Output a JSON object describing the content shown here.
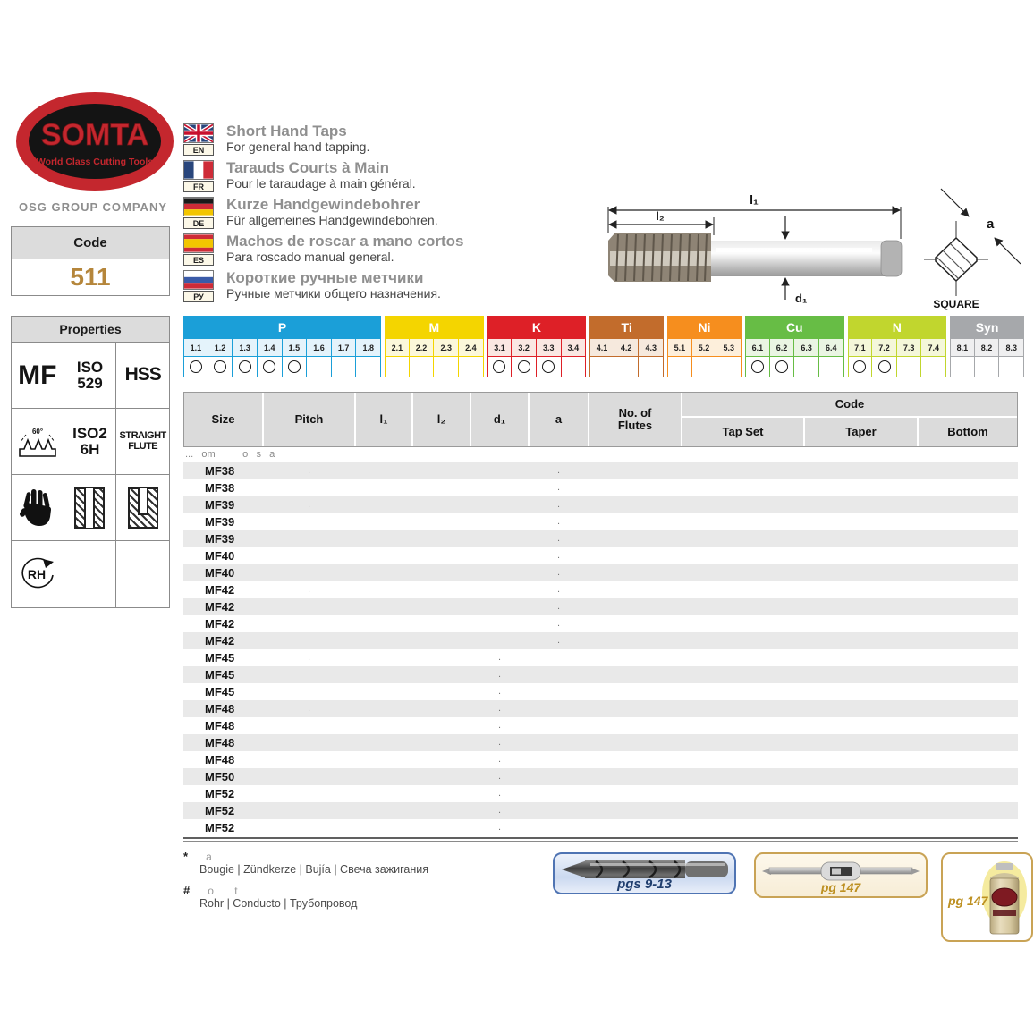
{
  "brand": {
    "logo_text": "SOMTA",
    "logo_tagline": "World Class Cutting Tools",
    "company_line": "OSG GROUP COMPANY",
    "brand_red": "#C4272E"
  },
  "code_box": {
    "label": "Code",
    "value": "511",
    "value_color": "#B5863B"
  },
  "properties": {
    "title": "Properties",
    "cells": [
      {
        "kind": "text",
        "name": "thread-type-mf",
        "value": "MF",
        "size": "xl"
      },
      {
        "kind": "text",
        "name": "iso-529-standard",
        "value": "ISO\n529",
        "size": "lg"
      },
      {
        "kind": "text",
        "name": "material-hss",
        "value": "HSS",
        "size": "lg2"
      },
      {
        "kind": "icon",
        "name": "thread-profile-icon",
        "value": "60°"
      },
      {
        "kind": "text",
        "name": "tolerance-iso2-6h",
        "value": "ISO2\n6H",
        "size": "lg"
      },
      {
        "kind": "text",
        "name": "straight-flute",
        "value": "STRAIGHT\nFLUTE",
        "size": "sm"
      },
      {
        "kind": "icon",
        "name": "hand-icon",
        "value": ""
      },
      {
        "kind": "icon",
        "name": "through-hole-icon",
        "value": ""
      },
      {
        "kind": "icon",
        "name": "blind-hole-icon",
        "value": ""
      },
      {
        "kind": "icon",
        "name": "rh-rotation-icon",
        "value": "RH"
      },
      {
        "kind": "empty",
        "name": "empty-cell",
        "value": ""
      },
      {
        "kind": "empty",
        "name": "empty-cell",
        "value": ""
      }
    ]
  },
  "languages": [
    {
      "code": "EN",
      "flag": "uk",
      "title": "Short Hand Taps",
      "subtitle": "For general hand tapping."
    },
    {
      "code": "FR",
      "flag": "france",
      "title": "Tarauds Courts à Main",
      "subtitle": "Pour le taraudage à main général."
    },
    {
      "code": "DE",
      "flag": "germany",
      "title": "Kurze Handgewindebohrer",
      "subtitle": "Für allgemeines Handgewindebohren."
    },
    {
      "code": "ES",
      "flag": "spain",
      "title": "Machos de roscar a mano cortos",
      "subtitle": "Para roscado manual general."
    },
    {
      "code": "РУ",
      "flag": "russia",
      "title": "Короткие ручные метчики",
      "subtitle": "Ручные метчики общего назначения."
    }
  ],
  "diagram": {
    "l1": "l₁",
    "l2": "l₂",
    "d1": "d₁",
    "a": "a",
    "square_label": "SQUARE"
  },
  "materials": {
    "groups": [
      {
        "name": "P",
        "color": "#1B9FD8",
        "tint": "#E4F3FB",
        "columns": [
          "1.1",
          "1.2",
          "1.3",
          "1.4",
          "1.5",
          "1.6",
          "1.7",
          "1.8"
        ],
        "checked": [
          "1.1",
          "1.2",
          "1.3",
          "1.4",
          "1.5"
        ]
      },
      {
        "name": "M",
        "color": "#F4D500",
        "tint": "#FCF8DA",
        "columns": [
          "2.1",
          "2.2",
          "2.3",
          "2.4"
        ],
        "checked": []
      },
      {
        "name": "K",
        "color": "#DE2027",
        "tint": "#FAE7E2",
        "columns": [
          "3.1",
          "3.2",
          "3.3",
          "3.4"
        ],
        "checked": [
          "3.1",
          "3.2",
          "3.3"
        ]
      },
      {
        "name": "Ti",
        "color": "#C26C2C",
        "tint": "#F6E9DD",
        "columns": [
          "4.1",
          "4.2",
          "4.3"
        ],
        "checked": []
      },
      {
        "name": "Ni",
        "color": "#F68E1E",
        "tint": "#FDEFDB",
        "columns": [
          "5.1",
          "5.2",
          "5.3"
        ],
        "checked": []
      },
      {
        "name": "Cu",
        "color": "#67BD45",
        "tint": "#EAF5E3",
        "columns": [
          "6.1",
          "6.2",
          "6.3",
          "6.4"
        ],
        "checked": [
          "6.1",
          "6.2"
        ]
      },
      {
        "name": "N",
        "color": "#C1D62E",
        "tint": "#F4F7D9",
        "columns": [
          "7.1",
          "7.2",
          "7.3",
          "7.4"
        ],
        "checked": [
          "7.1",
          "7.2"
        ]
      },
      {
        "name": "Syn",
        "color": "#A6A8AB",
        "tint": "#EFEFF0",
        "columns": [
          "8.1",
          "8.2",
          "8.3"
        ],
        "checked": []
      }
    ]
  },
  "table": {
    "note": "...   om          o   s   a",
    "headers": {
      "size": "Size",
      "pitch": "Pitch",
      "l1": "l₁",
      "l2": "l₂",
      "d1": "d₁",
      "a": "a",
      "flutes": "No. of\nFlutes",
      "code": "Code",
      "tap_set": "Tap Set",
      "taper": "Taper",
      "bottom": "Bottom"
    },
    "rows": [
      {
        "size": "MF38",
        "pitch": ".",
        "a": "."
      },
      {
        "size": "MF38",
        "a": "."
      },
      {
        "size": "MF39",
        "pitch": ".",
        "a": "."
      },
      {
        "size": "MF39",
        "a": "."
      },
      {
        "size": "MF39",
        "a": "."
      },
      {
        "size": "MF40",
        "a": "."
      },
      {
        "size": "MF40",
        "a": "."
      },
      {
        "size": "MF42",
        "pitch": ".",
        "a": "."
      },
      {
        "size": "MF42",
        "a": "."
      },
      {
        "size": "MF42",
        "a": "."
      },
      {
        "size": "MF42",
        "a": "."
      },
      {
        "size": "MF45",
        "pitch": ".",
        "d1": "."
      },
      {
        "size": "MF45",
        "d1": "."
      },
      {
        "size": "MF45",
        "d1": "."
      },
      {
        "size": "MF48",
        "pitch": ".",
        "d1": "."
      },
      {
        "size": "MF48",
        "d1": "."
      },
      {
        "size": "MF48",
        "d1": "."
      },
      {
        "size": "MF48",
        "d1": "."
      },
      {
        "size": "MF50",
        "d1": "."
      },
      {
        "size": "MF52",
        "d1": "."
      },
      {
        "size": "MF52",
        "d1": "."
      },
      {
        "size": "MF52",
        "d1": "."
      }
    ]
  },
  "footnotes": [
    {
      "symbol": "*",
      "remnant": "a",
      "translations": "Bougie | Zündkerze | Bujía | Свеча зажигания"
    },
    {
      "symbol": "#",
      "remnant": "o       t",
      "translations": "Rohr | Conducto | Трубопровод"
    }
  ],
  "references": {
    "drill_label": "pgs 9-13",
    "wrench_label": "pg 147",
    "fluid_label": "pg 147"
  }
}
